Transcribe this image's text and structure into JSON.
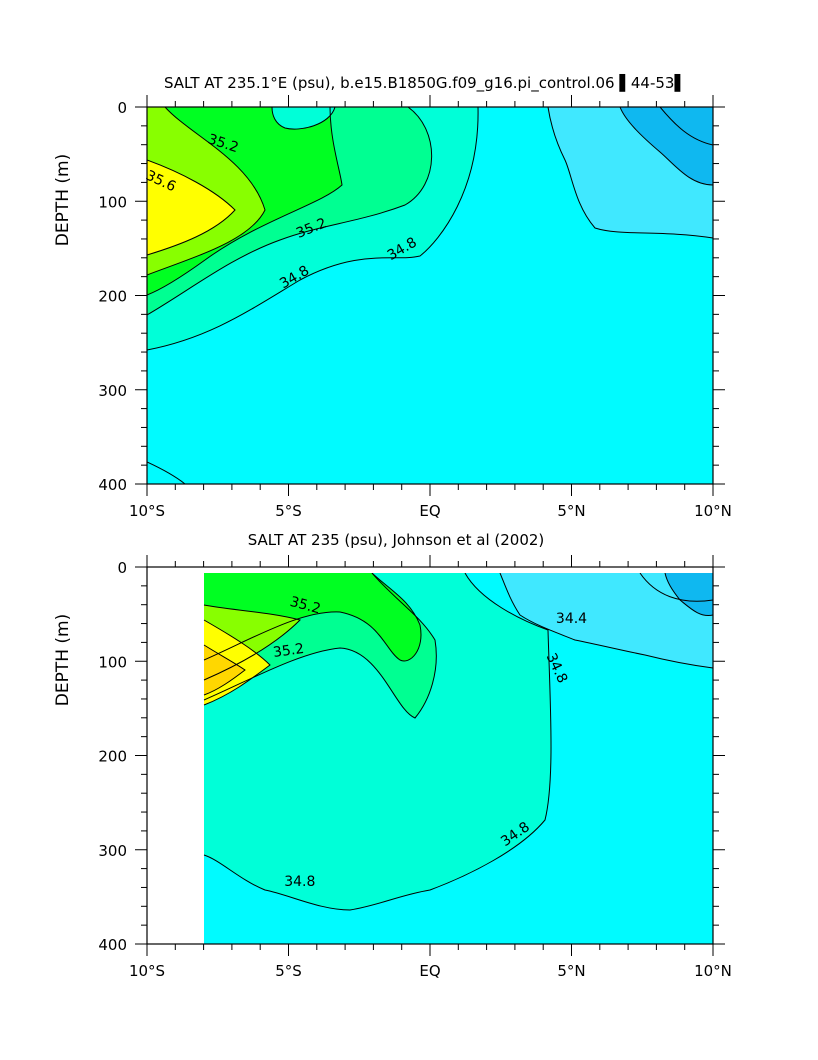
{
  "chart_data": [
    {
      "type": "heatmap",
      "title": "SALT AT 235.1°E (psu), b.e15.B1850G.f09_g16.pi_control.06 ▌44-53▌",
      "xlabel": "",
      "ylabel": "DEPTH (m)",
      "xlim": [
        -10,
        10
      ],
      "ylim": [
        400,
        0
      ],
      "x_ticks": [
        {
          "value": -10,
          "label": "10°S"
        },
        {
          "value": -5,
          "label": "5°S"
        },
        {
          "value": 0,
          "label": "EQ"
        },
        {
          "value": 5,
          "label": "5°N"
        },
        {
          "value": 10,
          "label": "10°N"
        }
      ],
      "y_ticks": [
        {
          "value": 0,
          "label": "0"
        },
        {
          "value": 100,
          "label": "100"
        },
        {
          "value": 200,
          "label": "200"
        },
        {
          "value": 300,
          "label": "300"
        },
        {
          "value": 400,
          "label": "400"
        }
      ],
      "data_x_range": [
        -10,
        10
      ],
      "contour_labels": [
        {
          "text": "35.2",
          "lon": -7.3,
          "depth": 38,
          "angle": 18
        },
        {
          "text": "35.6",
          "lon": -9.5,
          "depth": 78,
          "angle": 25
        },
        {
          "text": "35.2",
          "lon": -4.2,
          "depth": 128,
          "angle": -22
        },
        {
          "text": "34.8",
          "lon": -4.8,
          "depth": 180,
          "angle": -30
        },
        {
          "text": "34.8",
          "lon": -1.0,
          "depth": 150,
          "angle": -30
        }
      ]
    },
    {
      "type": "heatmap",
      "title": "SALT AT 235 (psu), Johnson et al (2002)",
      "xlabel": "",
      "ylabel": "DEPTH (m)",
      "xlim": [
        -10,
        10
      ],
      "ylim": [
        400,
        0
      ],
      "x_ticks": [
        {
          "value": -10,
          "label": "10°S"
        },
        {
          "value": -5,
          "label": "5°S"
        },
        {
          "value": 0,
          "label": "EQ"
        },
        {
          "value": 5,
          "label": "5°N"
        },
        {
          "value": 10,
          "label": "10°N"
        }
      ],
      "y_ticks": [
        {
          "value": 0,
          "label": "0"
        },
        {
          "value": 100,
          "label": "100"
        },
        {
          "value": 200,
          "label": "200"
        },
        {
          "value": 300,
          "label": "300"
        },
        {
          "value": 400,
          "label": "400"
        }
      ],
      "data_x_range": [
        -8,
        10
      ],
      "contour_labels": [
        {
          "text": "35.2",
          "lon": -4.4,
          "depth": 40,
          "angle": 15
        },
        {
          "text": "35.2",
          "lon": -5.0,
          "depth": 88,
          "angle": -8
        },
        {
          "text": "34.4",
          "lon": 5.0,
          "depth": 54,
          "angle": 0
        },
        {
          "text": "34.8",
          "lon": 4.5,
          "depth": 107,
          "angle": 65
        },
        {
          "text": "34.8",
          "lon": 3.0,
          "depth": 283,
          "angle": -35
        },
        {
          "text": "34.8",
          "lon": -4.6,
          "depth": 333,
          "angle": 0
        }
      ]
    }
  ],
  "colors": {
    "s_34_2": "#0fb8f0",
    "s_34_4": "#40e8ff",
    "s_34_6": "#00fbff",
    "s_34_8": "#00ffd8",
    "s_35_0": "#00ff92",
    "s_35_2": "#00ff22",
    "s_35_4": "#88ff00",
    "s_35_6": "#ffff00",
    "s_35_8": "#ffd700"
  }
}
